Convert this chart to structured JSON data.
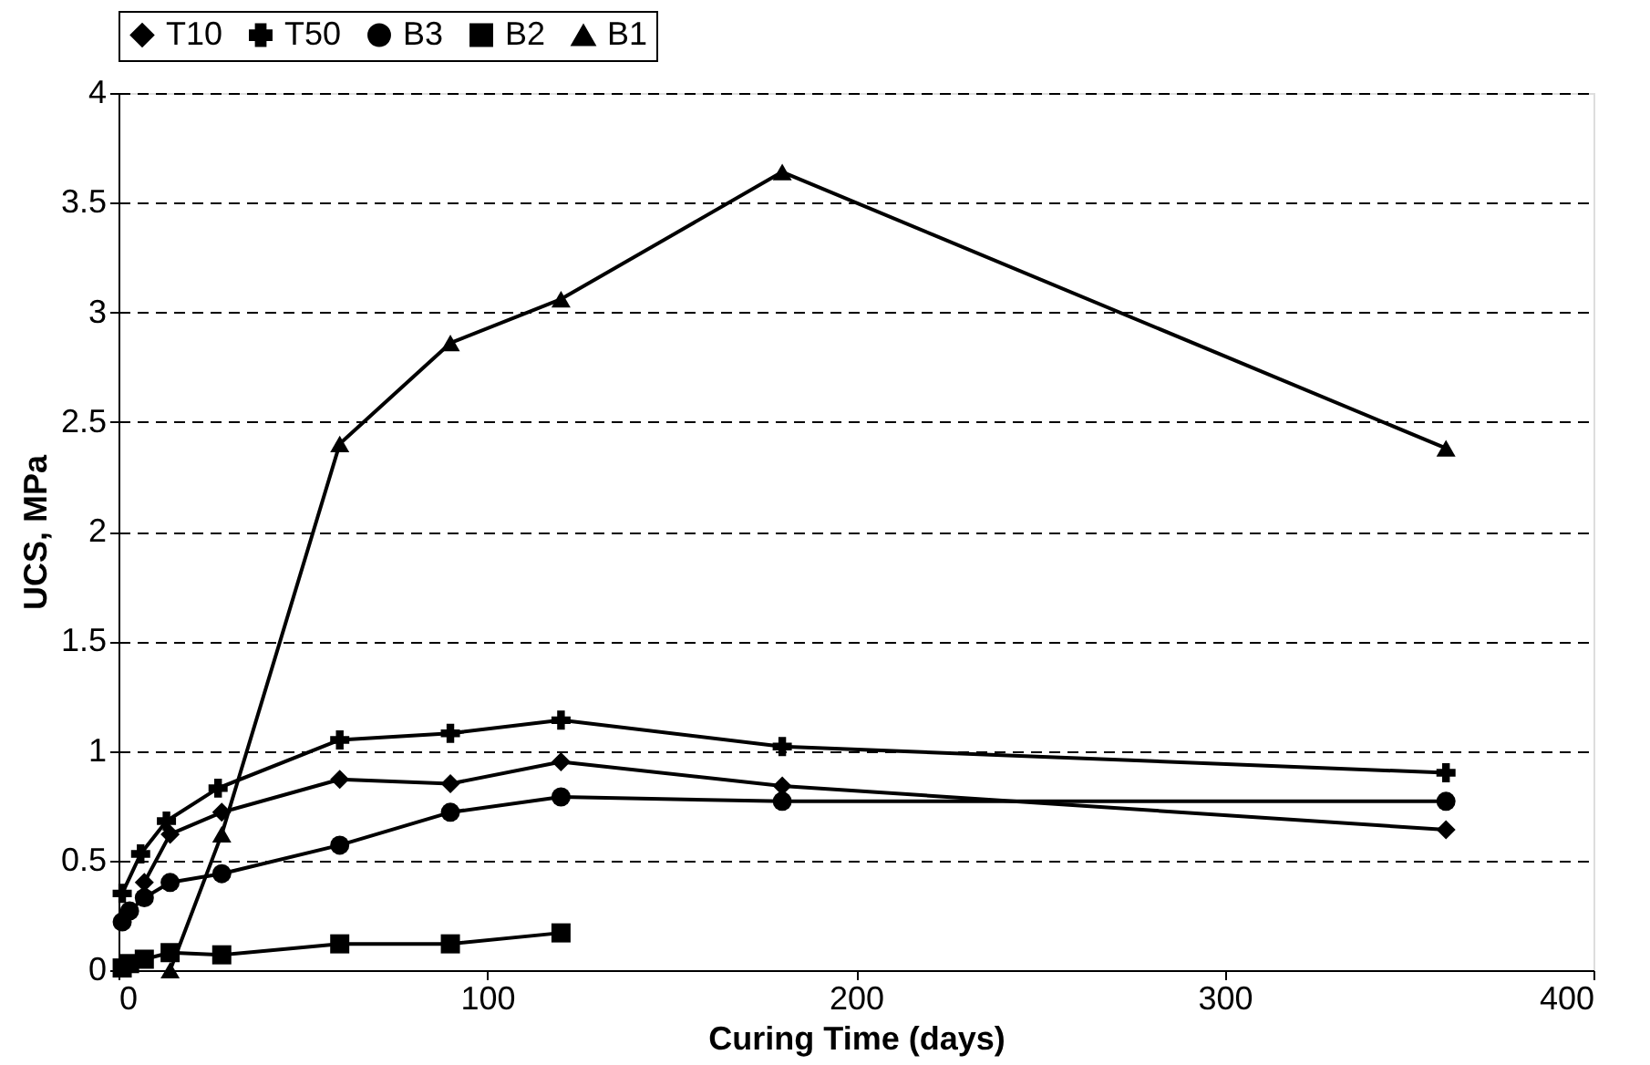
{
  "chart_data": {
    "type": "line",
    "xlabel": "Curing Time (days)",
    "ylabel": "UCS, MPa",
    "xlim": [
      0,
      400
    ],
    "xticks": [
      0,
      100,
      200,
      300,
      400
    ],
    "ylim": [
      0,
      4
    ],
    "yticks": [
      0,
      0.5,
      1,
      1.5,
      2,
      2.5,
      3,
      3.5,
      4
    ],
    "grid": "y",
    "legend": "top",
    "line_style": "solid",
    "series": [
      {
        "name": "T10",
        "color": "#000000",
        "marker": "diamond",
        "x": [
          7,
          14,
          28,
          60,
          90,
          120,
          180,
          360
        ],
        "values": [
          0.4,
          0.62,
          0.72,
          0.87,
          0.85,
          0.95,
          0.84,
          0.64
        ]
      },
      {
        "name": "T50",
        "color": "#000000",
        "marker": "cross",
        "x": [
          1,
          6,
          13,
          27,
          60,
          90,
          120,
          180,
          360
        ],
        "values": [
          0.35,
          0.53,
          0.68,
          0.83,
          1.05,
          1.08,
          1.14,
          1.02,
          0.9
        ]
      },
      {
        "name": "B3",
        "color": "#000000",
        "marker": "circle",
        "x": [
          1,
          3,
          7,
          14,
          28,
          60,
          90,
          120,
          180,
          360
        ],
        "values": [
          0.22,
          0.27,
          0.33,
          0.4,
          0.44,
          0.57,
          0.72,
          0.79,
          0.77,
          0.77
        ]
      },
      {
        "name": "B2",
        "color": "#000000",
        "marker": "square",
        "x": [
          1,
          3,
          7,
          14,
          28,
          60,
          90,
          120
        ],
        "values": [
          0.01,
          0.03,
          0.05,
          0.08,
          0.07,
          0.12,
          0.12,
          0.17
        ]
      },
      {
        "name": "B1",
        "color": "#000000",
        "marker": "triangle",
        "x": [
          14,
          28,
          60,
          90,
          120,
          180,
          360
        ],
        "values": [
          0.0,
          0.62,
          2.4,
          2.86,
          3.06,
          3.64,
          2.38
        ]
      }
    ]
  }
}
